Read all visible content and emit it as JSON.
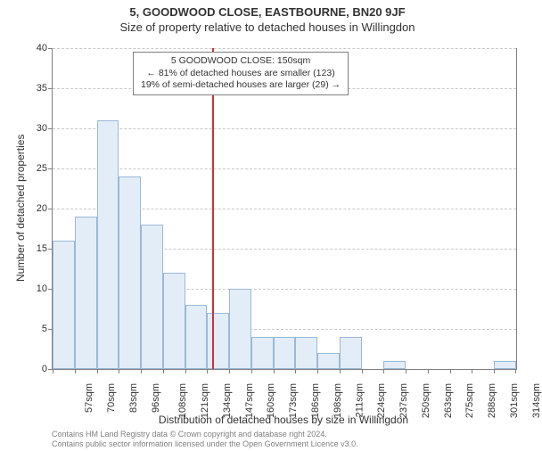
{
  "titles": {
    "main": "5, GOODWOOD CLOSE, EASTBOURNE, BN20 9JF",
    "sub": "Size of property relative to detached houses in Willingdon"
  },
  "chart": {
    "type": "histogram",
    "x_categories": [
      "57sqm",
      "70sqm",
      "83sqm",
      "96sqm",
      "108sqm",
      "121sqm",
      "134sqm",
      "147sqm",
      "160sqm",
      "173sqm",
      "186sqm",
      "198sqm",
      "211sqm",
      "224sqm",
      "237sqm",
      "250sqm",
      "263sqm",
      "275sqm",
      "288sqm",
      "301sqm",
      "314sqm"
    ],
    "values": [
      16,
      19,
      31,
      24,
      18,
      12,
      8,
      7,
      10,
      4,
      4,
      4,
      2,
      4,
      0,
      1,
      0,
      0,
      0,
      0,
      1
    ],
    "ylim": [
      0,
      40
    ],
    "ytick_step": 5,
    "y_ticks": [
      0,
      5,
      10,
      15,
      20,
      25,
      30,
      35,
      40
    ],
    "bar_fill": "#e2edf8",
    "bar_stroke": "#9cb8d6",
    "grid_color": "#c8c8c8",
    "axis_color": "#808080",
    "background": "#ffffff",
    "bar_width_ratio": 1.0,
    "y_axis_title": "Number of detached properties",
    "x_axis_title": "Distribution of detached houses by size in Willingdon",
    "title_fontsize": 13,
    "label_fontsize": 11
  },
  "marker": {
    "position_sqm": 150,
    "line_color": "#c93434",
    "line_width": 2,
    "annotation_lines": [
      "5 GOODWOOD CLOSE: 150sqm",
      "← 81% of detached houses are smaller (123)",
      "19% of semi-detached houses are larger (29) →"
    ],
    "box_border": "#808080",
    "box_bg": "#ffffff",
    "box_fontsize": 10.5
  },
  "footer": {
    "line1": "Contains HM Land Registry data © Crown copyright and database right 2024.",
    "line2": "Contains public sector information licensed under the Open Government Licence v3.0.",
    "color": "#808080",
    "fontsize": 9
  }
}
